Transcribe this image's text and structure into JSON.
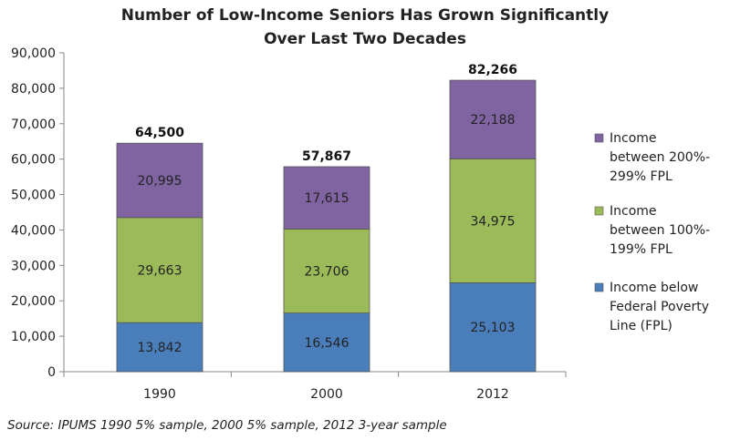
{
  "chart_data": {
    "type": "bar",
    "stacked": true,
    "title": [
      "Number of Low-Income Seniors Has Grown Significantly",
      "Over Last Two Decades"
    ],
    "categories": [
      "1990",
      "2000",
      "2012"
    ],
    "series": [
      {
        "name": "Income below Federal Poverty Line (FPL)",
        "legend_lines": [
          "Income below",
          "Federal Poverty",
          "Line (FPL)"
        ],
        "color": "#4a7ebb",
        "values": [
          13842,
          16546,
          25103
        ]
      },
      {
        "name": "Income between 100%-199% FPL",
        "legend_lines": [
          "Income",
          "between 100%-",
          "199% FPL"
        ],
        "color": "#9bbb59",
        "values": [
          29663,
          23706,
          34975
        ]
      },
      {
        "name": "Income between 200%-299% FPL",
        "legend_lines": [
          "Income",
          "between 200%-",
          "299% FPL"
        ],
        "color": "#8064a2",
        "values": [
          20995,
          17615,
          22188
        ]
      }
    ],
    "series_labels": [
      [
        "13,842",
        "16,546",
        "25,103"
      ],
      [
        "29,663",
        "23,706",
        "34,975"
      ],
      [
        "20,995",
        "17,615",
        "22,188"
      ]
    ],
    "totals": [
      "64,500",
      "57,867",
      "82,266"
    ],
    "y_ticks": [
      0,
      10000,
      20000,
      30000,
      40000,
      50000,
      60000,
      70000,
      80000,
      90000
    ],
    "y_tick_labels": [
      "0",
      "10,000",
      "20,000",
      "30,000",
      "40,000",
      "50,000",
      "60,000",
      "70,000",
      "80,000",
      "90,000"
    ],
    "ylim": [
      0,
      90000
    ],
    "grid": false,
    "legend_position": "right"
  },
  "source": "Source: IPUMS 1990 5% sample, 2000 5% sample, 2012 3-year sample"
}
